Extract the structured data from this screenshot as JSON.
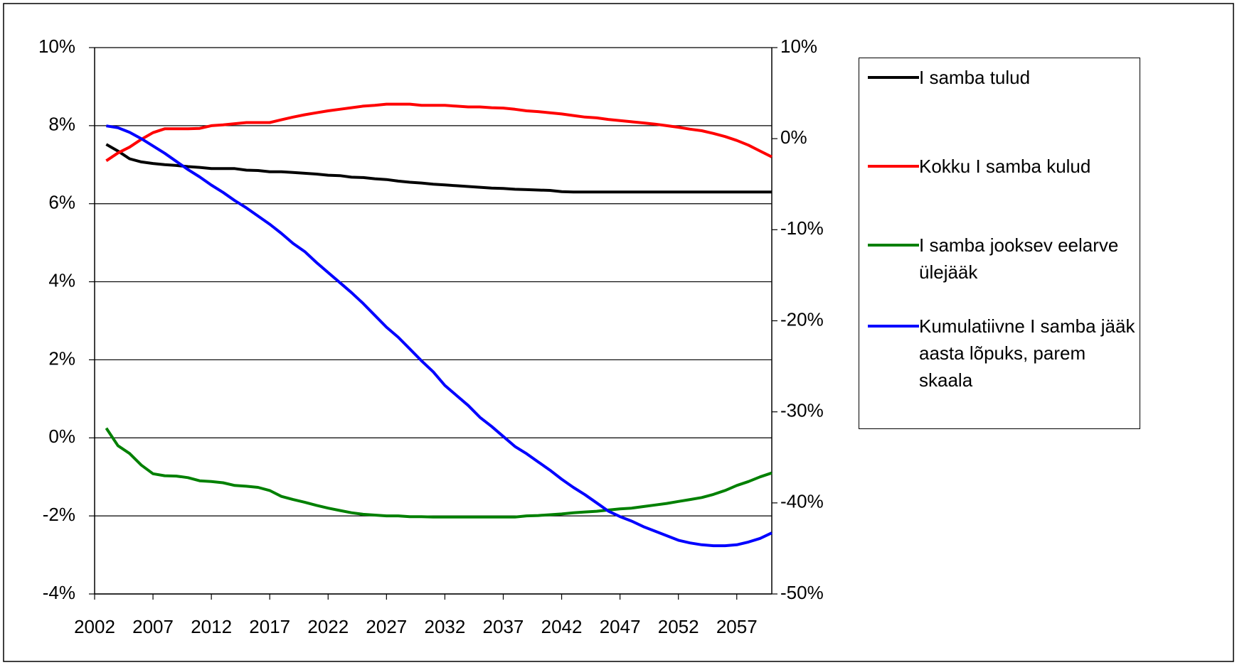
{
  "chart_data": {
    "type": "line",
    "x": [
      2003,
      2004,
      2005,
      2006,
      2007,
      2008,
      2009,
      2010,
      2011,
      2012,
      2013,
      2014,
      2015,
      2016,
      2017,
      2018,
      2019,
      2020,
      2021,
      2022,
      2023,
      2024,
      2025,
      2026,
      2027,
      2028,
      2029,
      2030,
      2031,
      2032,
      2033,
      2034,
      2035,
      2036,
      2037,
      2038,
      2039,
      2040,
      2041,
      2042,
      2043,
      2044,
      2045,
      2046,
      2047,
      2048,
      2049,
      2050,
      2051,
      2052,
      2053,
      2054,
      2055,
      2056,
      2057,
      2058,
      2059,
      2060
    ],
    "xlim": [
      2002,
      2060
    ],
    "xticks": [
      2002,
      2007,
      2012,
      2017,
      2022,
      2027,
      2032,
      2037,
      2042,
      2047,
      2052,
      2057
    ],
    "ylim": [
      -4,
      10
    ],
    "yticks": [
      {
        "value": -4,
        "label": "-4%"
      },
      {
        "value": -2,
        "label": "-2%"
      },
      {
        "value": 0,
        "label": "0%"
      },
      {
        "value": 2,
        "label": "2%"
      },
      {
        "value": 4,
        "label": "4%"
      },
      {
        "value": 6,
        "label": "6%"
      },
      {
        "value": 8,
        "label": "8%"
      },
      {
        "value": 10,
        "label": "10%"
      }
    ],
    "y2lim": [
      -50,
      10
    ],
    "y2ticks": [
      {
        "value": -50,
        "label": "-50%"
      },
      {
        "value": -40,
        "label": "-40%"
      },
      {
        "value": -30,
        "label": "-30%"
      },
      {
        "value": -20,
        "label": "-20%"
      },
      {
        "value": -10,
        "label": "-10%"
      },
      {
        "value": 0,
        "label": "0%"
      },
      {
        "value": 10,
        "label": "10%"
      }
    ],
    "grid": true,
    "legend": "right",
    "series": [
      {
        "name": "I samba tulud",
        "color": "#000000",
        "values": [
          7.52,
          7.35,
          7.15,
          7.07,
          7.03,
          7.0,
          6.98,
          6.95,
          6.93,
          6.9,
          6.9,
          6.9,
          6.86,
          6.85,
          6.82,
          6.82,
          6.8,
          6.78,
          6.76,
          6.73,
          6.72,
          6.68,
          6.67,
          6.64,
          6.62,
          6.58,
          6.55,
          6.53,
          6.5,
          6.48,
          6.46,
          6.44,
          6.42,
          6.4,
          6.39,
          6.37,
          6.36,
          6.35,
          6.34,
          6.31,
          6.3,
          6.3,
          6.3,
          6.3,
          6.3,
          6.3,
          6.3,
          6.3,
          6.3,
          6.3,
          6.3,
          6.3,
          6.3,
          6.3,
          6.3,
          6.3,
          6.3,
          6.3
        ]
      },
      {
        "name": "Kokku I samba kulud",
        "color": "#ff0000",
        "values": [
          7.1,
          7.3,
          7.45,
          7.65,
          7.82,
          7.92,
          7.92,
          7.92,
          7.93,
          8.0,
          8.02,
          8.05,
          8.08,
          8.08,
          8.08,
          8.15,
          8.22,
          8.28,
          8.33,
          8.38,
          8.42,
          8.46,
          8.5,
          8.52,
          8.55,
          8.55,
          8.55,
          8.52,
          8.52,
          8.52,
          8.5,
          8.48,
          8.48,
          8.46,
          8.45,
          8.42,
          8.38,
          8.36,
          8.33,
          8.3,
          8.26,
          8.22,
          8.2,
          8.16,
          8.13,
          8.1,
          8.07,
          8.04,
          8.0,
          7.96,
          7.91,
          7.87,
          7.8,
          7.72,
          7.62,
          7.5,
          7.35,
          7.2
        ]
      },
      {
        "name": "I samba jooksev eelarve ülejääk",
        "color": "#008000",
        "values": [
          0.25,
          -0.2,
          -0.4,
          -0.7,
          -0.92,
          -0.97,
          -0.98,
          -1.02,
          -1.1,
          -1.12,
          -1.15,
          -1.22,
          -1.24,
          -1.27,
          -1.35,
          -1.5,
          -1.58,
          -1.65,
          -1.73,
          -1.8,
          -1.86,
          -1.92,
          -1.96,
          -1.98,
          -2.0,
          -2.0,
          -2.02,
          -2.02,
          -2.03,
          -2.03,
          -2.03,
          -2.03,
          -2.03,
          -2.03,
          -2.03,
          -2.03,
          -2.0,
          -1.99,
          -1.97,
          -1.95,
          -1.92,
          -1.9,
          -1.88,
          -1.85,
          -1.82,
          -1.8,
          -1.76,
          -1.72,
          -1.68,
          -1.63,
          -1.58,
          -1.53,
          -1.45,
          -1.35,
          -1.22,
          -1.12,
          -1.0,
          -0.9
        ]
      },
      {
        "name": "Kumulatiivne I samba jääk aasta lõpuks, parem skaala",
        "color": "#0000ff",
        "axis": "y2",
        "values": [
          1.4,
          1.2,
          0.7,
          0.0,
          -0.8,
          -1.6,
          -2.5,
          -3.4,
          -4.2,
          -5.1,
          -5.9,
          -6.8,
          -7.6,
          -8.5,
          -9.4,
          -10.4,
          -11.5,
          -12.4,
          -13.6,
          -14.7,
          -15.8,
          -16.9,
          -18.1,
          -19.4,
          -20.7,
          -21.8,
          -23.1,
          -24.4,
          -25.6,
          -27.1,
          -28.2,
          -29.3,
          -30.6,
          -31.6,
          -32.7,
          -33.8,
          -34.6,
          -35.5,
          -36.4,
          -37.4,
          -38.3,
          -39.1,
          -40.0,
          -40.9,
          -41.5,
          -42.0,
          -42.6,
          -43.1,
          -43.6,
          -44.1,
          -44.4,
          -44.6,
          -44.7,
          -44.7,
          -44.6,
          -44.3,
          -43.9,
          -43.3
        ]
      }
    ]
  }
}
